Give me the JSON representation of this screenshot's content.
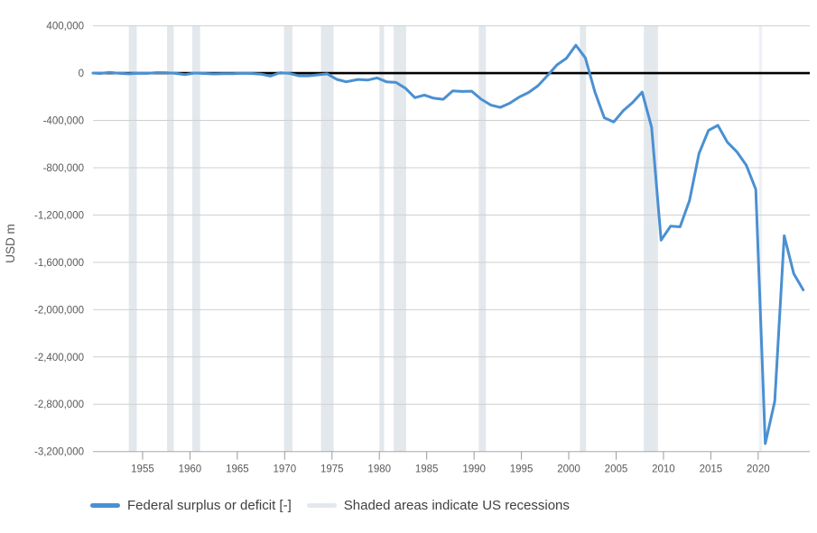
{
  "legend": {
    "series_label": "Federal surplus or deficit [-]",
    "recession_label": "Shaded areas indicate US recessions"
  },
  "chart_data": {
    "type": "line",
    "title": "",
    "xlabel": "",
    "ylabel": "USD m",
    "legend_position": "bottom",
    "grid": true,
    "xlim": [
      1949.76,
      2025.45
    ],
    "ylim": [
      -3200000,
      400000
    ],
    "x_ticks": [
      1955,
      1960,
      1965,
      1970,
      1975,
      1980,
      1985,
      1990,
      1995,
      2000,
      2005,
      2010,
      2015,
      2020
    ],
    "y_ticks": [
      400000,
      0,
      -400000,
      -800000,
      -1200000,
      -1600000,
      -2000000,
      -2400000,
      -2800000,
      -3200000
    ],
    "series": [
      {
        "name": "Federal surplus or deficit [-]",
        "unit": "USD m",
        "fiscal_years": [
          1949,
          1950,
          1951,
          1952,
          1953,
          1954,
          1955,
          1956,
          1957,
          1958,
          1959,
          1960,
          1961,
          1962,
          1963,
          1964,
          1965,
          1966,
          1967,
          1968,
          1969,
          1970,
          1971,
          1972,
          1973,
          1974,
          1975,
          1976,
          1977,
          1978,
          1979,
          1980,
          1981,
          1982,
          1983,
          1984,
          1985,
          1986,
          1987,
          1988,
          1989,
          1990,
          1991,
          1992,
          1993,
          1994,
          1995,
          1996,
          1997,
          1998,
          1999,
          2000,
          2001,
          2002,
          2003,
          2004,
          2005,
          2006,
          2007,
          2008,
          2009,
          2010,
          2011,
          2012,
          2013,
          2014,
          2015,
          2016,
          2017,
          2018,
          2019,
          2020,
          2021,
          2022,
          2023,
          2024
        ],
        "values": [
          580,
          -3119,
          6102,
          -1519,
          -6493,
          -1154,
          -2993,
          3947,
          3412,
          -2769,
          -12849,
          301,
          -3335,
          -7146,
          -4756,
          -5915,
          -1411,
          -3698,
          -8643,
          -25161,
          3242,
          -2842,
          -23033,
          -23373,
          -14908,
          -6135,
          -53242,
          -73732,
          -53659,
          -59185,
          -40726,
          -73830,
          -78968,
          -127977,
          -207802,
          -185367,
          -212308,
          -221227,
          -149730,
          -155178,
          -152639,
          -221036,
          -269238,
          -290321,
          -255051,
          -203186,
          -163952,
          -107431,
          -21884,
          69270,
          125610,
          236241,
          128236,
          -157758,
          -377585,
          -412727,
          -318346,
          -248181,
          -160701,
          -458553,
          -1412688,
          -1294089,
          -1299595,
          -1076573,
          -679775,
          -484793,
          -441960,
          -584651,
          -665446,
          -779137,
          -983592,
          -3131917,
          -2775535,
          -1375389,
          -1695224,
          -1832816
        ]
      }
    ],
    "recessions": [
      [
        1953.54,
        1954.38
      ],
      [
        1957.58,
        1958.29
      ],
      [
        1960.25,
        1961.08
      ],
      [
        1969.92,
        1970.83
      ],
      [
        1973.83,
        1975.17
      ],
      [
        1980.0,
        1980.5
      ],
      [
        1981.5,
        1982.83
      ],
      [
        1990.5,
        1991.25
      ],
      [
        2001.17,
        2001.83
      ],
      [
        2007.92,
        2009.42
      ],
      [
        2020.08,
        2020.42
      ]
    ],
    "colors": {
      "line": "#4a90d2",
      "recession_band": "#e3e8ed",
      "recession_band_light": "#edf1f5",
      "zero_line": "#000000",
      "gridline": "#cfcfcf",
      "axis_line": "#a8a8a8",
      "tick_text": "#58595b",
      "axis_title_text": "#58595b"
    }
  }
}
